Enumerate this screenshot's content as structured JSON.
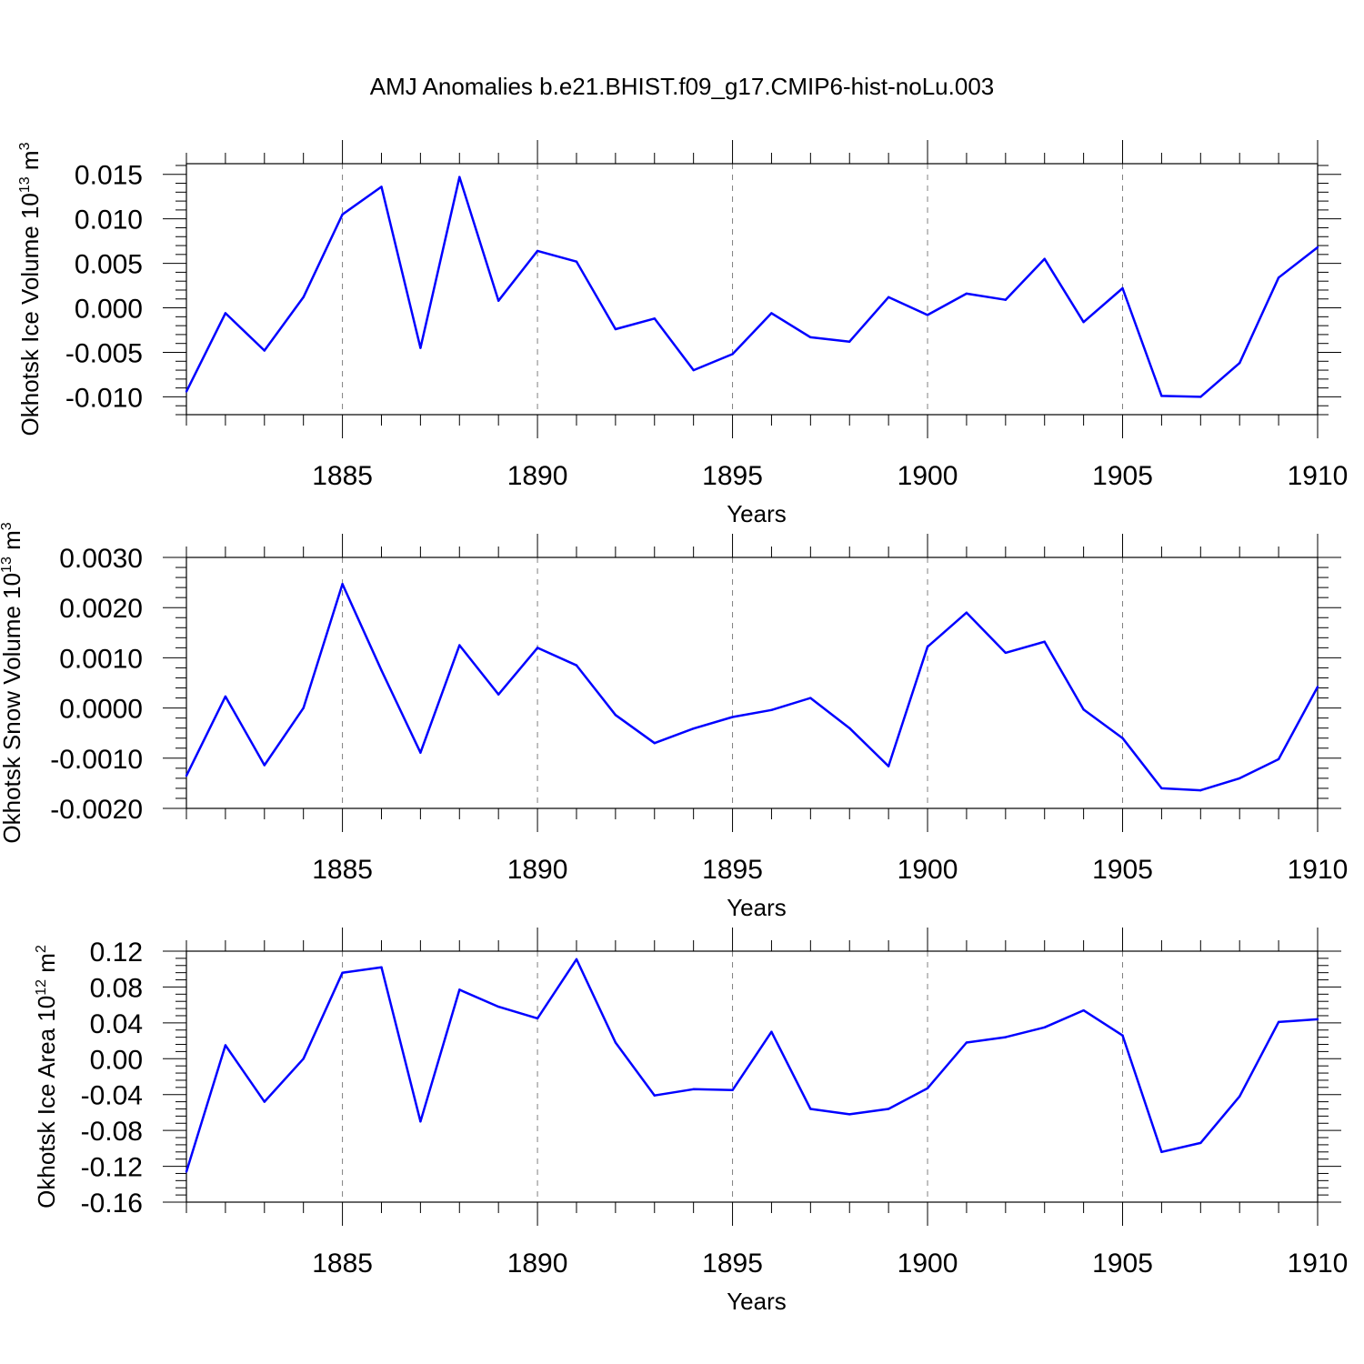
{
  "title": "AMJ Anomalies b.e21.BHIST.f09_g17.CMIP6-hist-noLu.003",
  "line_color": "#0000ff",
  "chart_data": [
    {
      "type": "line",
      "ylabel": "Okhotsk Ice Volume 10",
      "ylabel_sup_exp": "13",
      "ylabel_unit": "m",
      "ylabel_unit_sup": "3",
      "xlabel": "Years",
      "xlim": [
        1881,
        1910
      ],
      "ylim": [
        -0.012,
        0.0162
      ],
      "grid": "vertical dashed at major x ticks",
      "xticks": [
        "1885",
        "1890",
        "1895",
        "1900",
        "1905",
        "1910"
      ],
      "yticks": [
        "-0.010",
        "-0.005",
        "0.000",
        "0.005",
        "0.010",
        "0.015"
      ],
      "x": [
        1881,
        1882,
        1883,
        1884,
        1885,
        1886,
        1887,
        1888,
        1889,
        1890,
        1891,
        1892,
        1893,
        1894,
        1895,
        1896,
        1897,
        1898,
        1899,
        1900,
        1901,
        1902,
        1903,
        1904,
        1905,
        1906,
        1907,
        1908,
        1909,
        1910
      ],
      "values": [
        -0.0094,
        -0.0006,
        -0.0048,
        0.0012,
        0.0105,
        0.0136,
        -0.0045,
        0.0147,
        0.0008,
        0.0064,
        0.0052,
        -0.0024,
        -0.0012,
        -0.007,
        -0.0052,
        -0.0006,
        -0.0033,
        -0.0038,
        0.0012,
        -0.0008,
        0.0016,
        0.0009,
        0.0055,
        -0.0016,
        0.0022,
        -0.0099,
        -0.01,
        -0.0062,
        0.0034,
        0.0068
      ]
    },
    {
      "type": "line",
      "ylabel": "Okhotsk Snow Volume 10",
      "ylabel_sup_exp": "13",
      "ylabel_unit": "m",
      "ylabel_unit_sup": "3",
      "xlabel": "Years",
      "xlim": [
        1881,
        1910
      ],
      "ylim": [
        -0.002,
        0.003
      ],
      "grid": "vertical dashed at major x ticks",
      "xticks": [
        "1885",
        "1890",
        "1895",
        "1900",
        "1905",
        "1910"
      ],
      "yticks": [
        "-0.0020",
        "-0.0010",
        "0.0000",
        "0.0010",
        "0.0020",
        "0.0030"
      ],
      "x": [
        1881,
        1882,
        1883,
        1884,
        1885,
        1886,
        1887,
        1888,
        1889,
        1890,
        1891,
        1892,
        1893,
        1894,
        1895,
        1896,
        1897,
        1898,
        1899,
        1900,
        1901,
        1902,
        1903,
        1904,
        1905,
        1906,
        1907,
        1908,
        1909,
        1910
      ],
      "values": [
        -0.00135,
        0.00023,
        -0.00114,
        0.0,
        0.00247,
        0.00075,
        -0.00089,
        0.00125,
        0.00027,
        0.0012,
        0.00085,
        -0.00014,
        -0.0007,
        -0.00041,
        -0.00018,
        -4e-05,
        0.0002,
        -0.0004,
        -0.00116,
        0.00122,
        0.0019,
        0.0011,
        0.00132,
        -3e-05,
        -0.0006,
        -0.0016,
        -0.00164,
        -0.0014,
        -0.00102,
        0.00042
      ]
    },
    {
      "type": "line",
      "ylabel": "Okhotsk Ice Area 10",
      "ylabel_sup_exp": "12",
      "ylabel_unit": "m",
      "ylabel_unit_sup": "2",
      "xlabel": "Years",
      "xlim": [
        1881,
        1910
      ],
      "ylim": [
        -0.16,
        0.12
      ],
      "grid": "vertical dashed at major x ticks",
      "xticks": [
        "1885",
        "1890",
        "1895",
        "1900",
        "1905",
        "1910"
      ],
      "yticks": [
        "-0.16",
        "-0.12",
        "-0.08",
        "-0.04",
        "0.00",
        "0.04",
        "0.08",
        "0.12"
      ],
      "x": [
        1881,
        1882,
        1883,
        1884,
        1885,
        1886,
        1887,
        1888,
        1889,
        1890,
        1891,
        1892,
        1893,
        1894,
        1895,
        1896,
        1897,
        1898,
        1899,
        1900,
        1901,
        1902,
        1903,
        1904,
        1905,
        1906,
        1907,
        1908,
        1909,
        1910
      ],
      "values": [
        -0.126,
        0.015,
        -0.048,
        0.0,
        0.096,
        0.102,
        -0.07,
        0.077,
        0.058,
        0.045,
        0.111,
        0.018,
        -0.041,
        -0.034,
        -0.035,
        0.03,
        -0.056,
        -0.062,
        -0.056,
        -0.033,
        0.018,
        0.024,
        0.035,
        0.054,
        0.026,
        -0.104,
        -0.094,
        -0.042,
        0.041,
        0.044
      ]
    }
  ]
}
